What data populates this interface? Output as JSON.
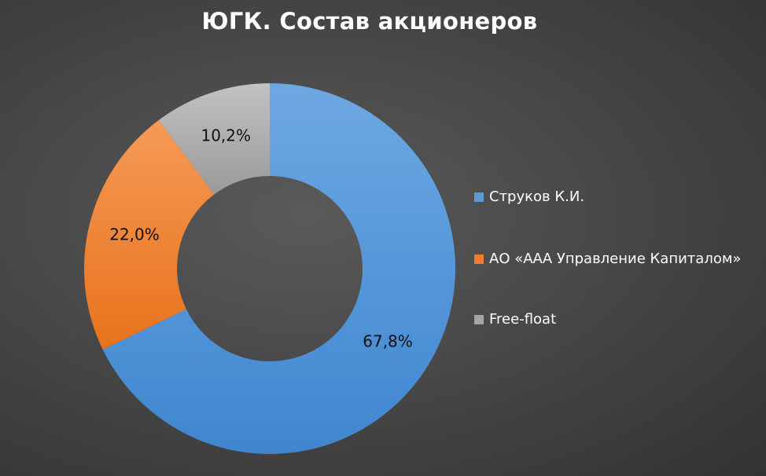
{
  "chart_data": {
    "type": "pie",
    "title": "ЮГК. Состав акционеров",
    "labels": [
      "Струков К.И.",
      "АО «ААА Управление Капиталом»",
      "Free-float"
    ],
    "values": [
      67.8,
      22.0,
      10.2
    ],
    "data_labels": [
      "67,8%",
      "22,0%",
      "10,2%"
    ],
    "colors": [
      "#4a90d4",
      "#f07c2e",
      "#a6a6a6"
    ],
    "style": "donut",
    "legend_position": "right"
  }
}
